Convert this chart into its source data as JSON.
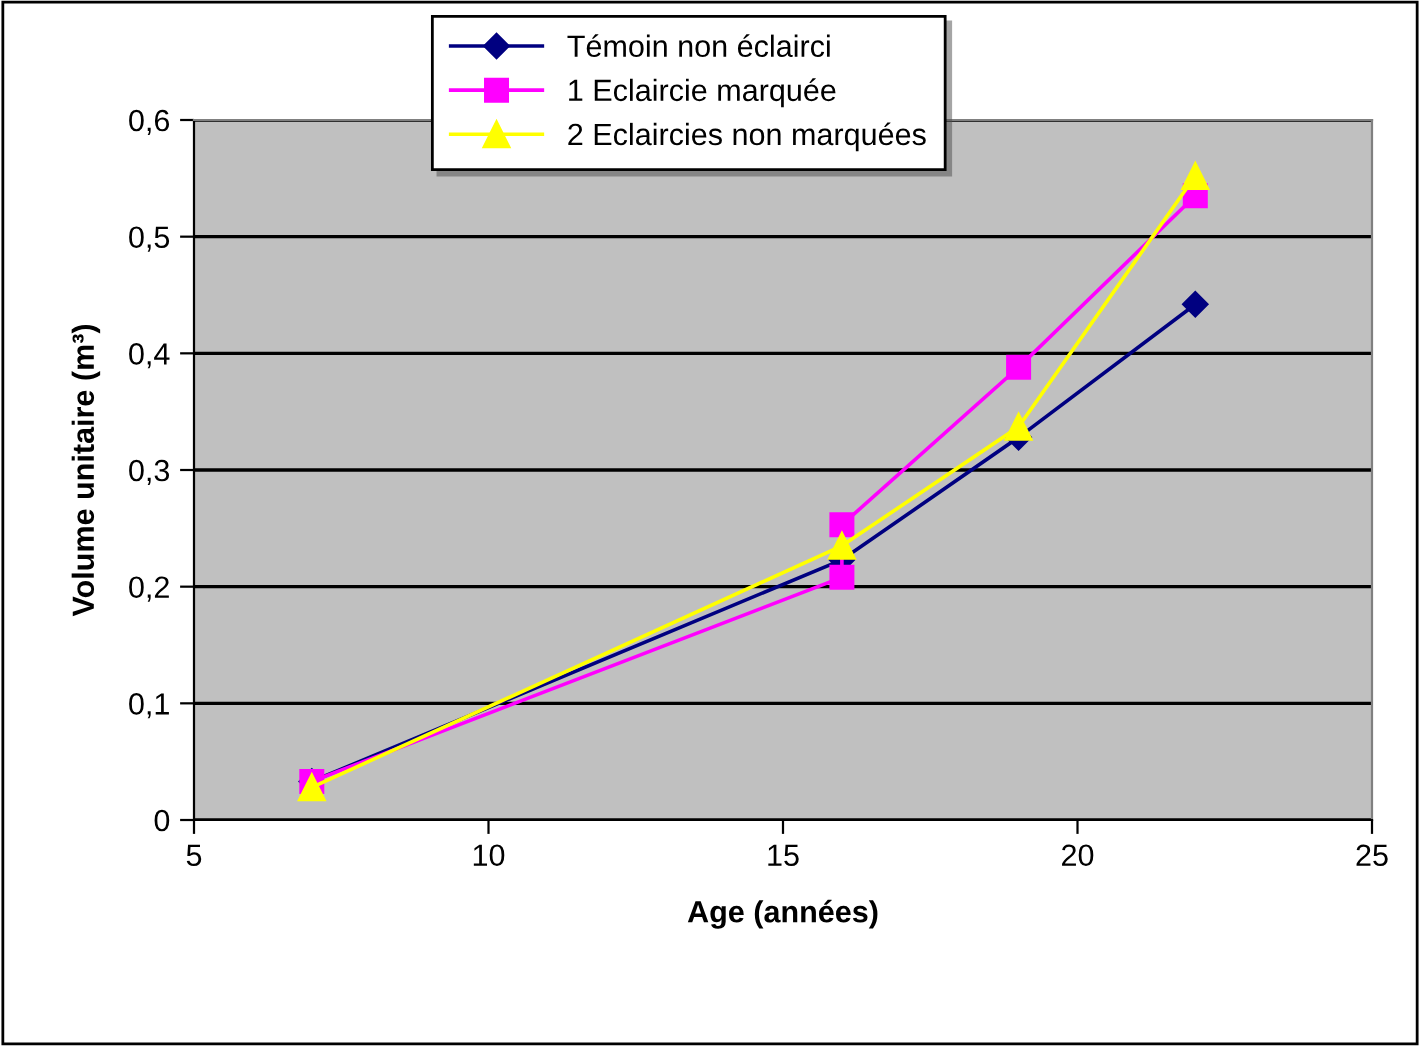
{
  "chart_data": {
    "type": "line",
    "xlabel": "Age (années)",
    "ylabel": "Volume unitaire (m³)",
    "xlim": [
      5,
      25
    ],
    "xticks": [
      5,
      10,
      15,
      20,
      25
    ],
    "ylim": [
      0,
      0.6
    ],
    "yticks": [
      {
        "value": 0,
        "label": "0"
      },
      {
        "value": 0.1,
        "label": "0,1"
      },
      {
        "value": 0.2,
        "label": "0,2"
      },
      {
        "value": 0.3,
        "label": "0,3"
      },
      {
        "value": 0.4,
        "label": "0,4"
      },
      {
        "value": 0.5,
        "label": "0,5"
      },
      {
        "value": 0.6,
        "label": "0,6"
      }
    ],
    "grid": "y",
    "legend": "top",
    "line_style": "solid",
    "series": [
      {
        "name": "Témoin non éclairci",
        "color": "#000080",
        "marker": "diamond",
        "x": [
          7,
          16,
          19,
          22
        ],
        "values": [
          0.033,
          0.223,
          0.328,
          0.442
        ]
      },
      {
        "name": "1 Eclaircie marquée",
        "color": "#ff00ff",
        "marker": "square",
        "x": [
          7,
          16,
          16,
          19,
          22
        ],
        "values": [
          0.033,
          0.208,
          0.253,
          0.388,
          0.535
        ]
      },
      {
        "name": "2 Eclaircies non marquées",
        "color": "#ffff00",
        "marker": "triangle",
        "x": [
          7,
          16,
          19,
          22
        ],
        "values": [
          0.028,
          0.235,
          0.337,
          0.552
        ]
      }
    ]
  }
}
